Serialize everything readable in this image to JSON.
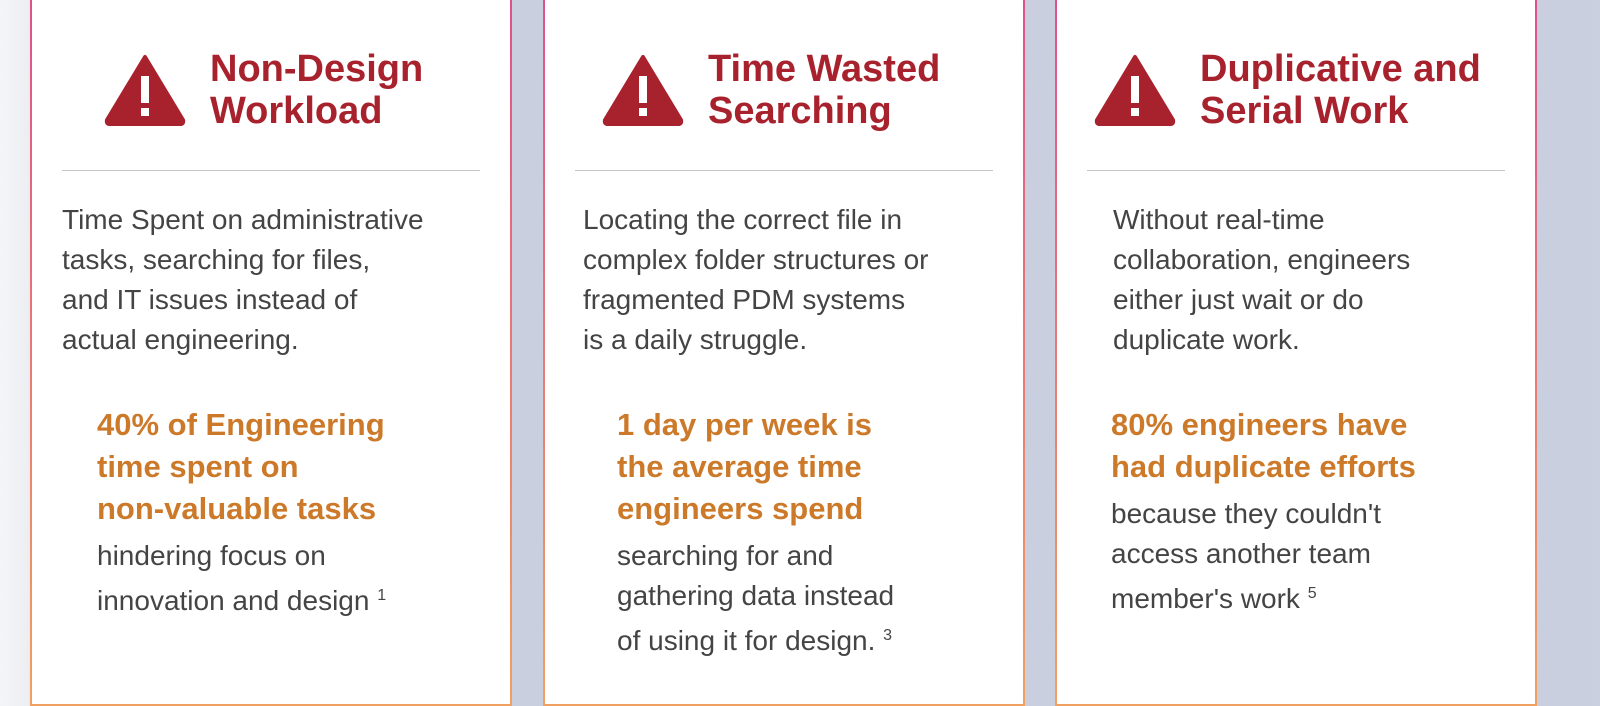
{
  "cards": [
    {
      "title": [
        "Non-Design",
        "Workload"
      ],
      "body": [
        "Time Spent on administrative",
        "tasks, searching for files,",
        "and IT issues instead of",
        "actual engineering."
      ],
      "stat": [
        "40% of Engineering",
        "time spent on",
        "non-valuable tasks"
      ],
      "sub": [
        "hindering focus on",
        "innovation and design"
      ],
      "ref": "1",
      "icon": "warning-icon"
    },
    {
      "title": [
        "Time Wasted",
        "Searching"
      ],
      "body": [
        "Locating the correct file in",
        "complex folder structures or",
        "fragmented PDM systems",
        "is a daily struggle."
      ],
      "stat": [
        "1 day per week is",
        "the average time",
        "engineers spend"
      ],
      "sub": [
        "searching for and",
        "gathering data instead",
        "of using it for design."
      ],
      "ref": "3",
      "icon": "warning-icon"
    },
    {
      "title": [
        "Duplicative and",
        "Serial Work"
      ],
      "body": [
        "Without real-time",
        "collaboration, engineers",
        "either just wait or do",
        "duplicate work."
      ],
      "stat": [
        "80% engineers have",
        "had duplicate efforts"
      ],
      "sub": [
        "because they couldn't",
        "access another team",
        "member's work"
      ],
      "ref": "5",
      "icon": "warning-icon"
    }
  ],
  "colors": {
    "title": "#a8222e",
    "stat": "#cc7a2a",
    "text": "#444444"
  }
}
